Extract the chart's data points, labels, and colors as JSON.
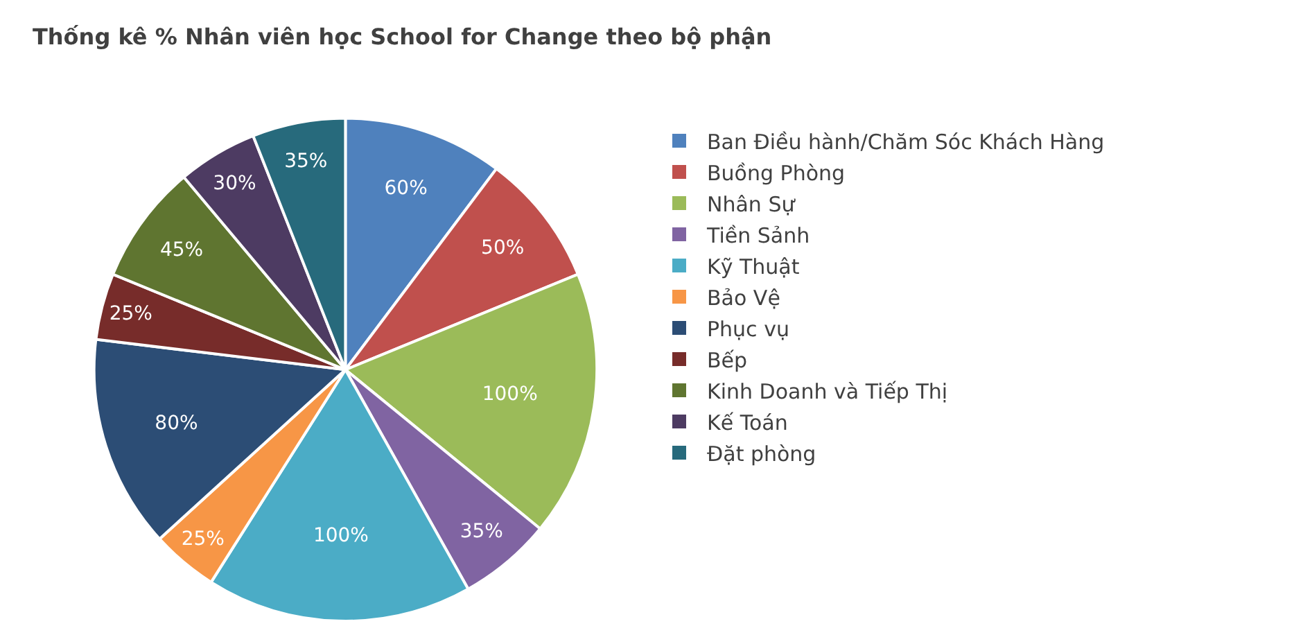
{
  "chart_data": {
    "type": "pie",
    "title": "Thống kê % Nhân viên học School for Change theo bộ phận",
    "categories": [
      "Ban Điều hành/Chăm Sóc Khách Hàng",
      "Buồng Phòng",
      "Nhân Sự",
      "Tiền Sảnh",
      "Kỹ Thuật",
      "Bảo Vệ",
      "Phục vụ",
      "Bếp",
      "Kinh Doanh và Tiếp Thị",
      "Kế Toán",
      "Đặt phòng"
    ],
    "values": [
      60,
      50,
      100,
      35,
      100,
      25,
      80,
      25,
      45,
      30,
      35
    ],
    "value_labels": [
      "60%",
      "50%",
      "100%",
      "35%",
      "100%",
      "25%",
      "80%",
      "25%",
      "45%",
      "30%",
      "35%"
    ],
    "colors": [
      "#4f81bd",
      "#c0504d",
      "#9bbb59",
      "#8064a2",
      "#4bacc6",
      "#f79646",
      "#2c4d75",
      "#772c2a",
      "#5f7530",
      "#4d3b62",
      "#276a7c"
    ],
    "legend": "right"
  }
}
